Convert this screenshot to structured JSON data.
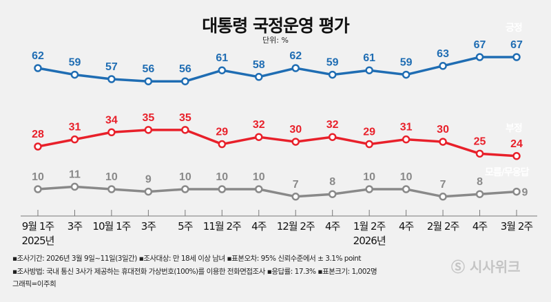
{
  "chart_data": {
    "type": "line",
    "title": "대통령 국정운영 평가",
    "unit": "단위: %",
    "categories": [
      "9월 1주",
      "3주",
      "10월 1주",
      "3주",
      "5주",
      "11월 2주",
      "4주",
      "12월 2주",
      "4주",
      "1월 2주",
      "4주",
      "2월 2주",
      "4주",
      "3월 2주"
    ],
    "year_labels": [
      {
        "index": 0,
        "label": "2025년"
      },
      {
        "index": 9,
        "label": "2026년"
      }
    ],
    "series": [
      {
        "name": "긍정",
        "color": "#1f6db3",
        "values": [
          62,
          59,
          57,
          56,
          56,
          61,
          58,
          62,
          59,
          61,
          59,
          63,
          67,
          67
        ]
      },
      {
        "name": "부정",
        "color": "#e8202a",
        "values": [
          28,
          31,
          34,
          35,
          35,
          29,
          32,
          30,
          32,
          29,
          31,
          30,
          25,
          24
        ]
      },
      {
        "name": "모름/무응답",
        "color": "#898989",
        "values": [
          10,
          11,
          10,
          9,
          10,
          10,
          10,
          7,
          8,
          10,
          10,
          7,
          8,
          9
        ]
      }
    ],
    "grid": false,
    "legend": "inline-right"
  },
  "notes": [
    "▪조사기간: 2026년 3월 9일~11일(3일간) ▪조사대상: 만 18세 이상 남녀 ▪표본오차: 95% 신뢰수준에서 ± 3.1% point",
    "▪조사방법: 국내 통신 3사가 제공하는 휴대전화 가상번호(100%)를 이용한 전화면접조사 ▪응답률: 17.3% ▪표본크기: 1,002명",
    "그래픽=이주희"
  ],
  "logo": "시사위크"
}
